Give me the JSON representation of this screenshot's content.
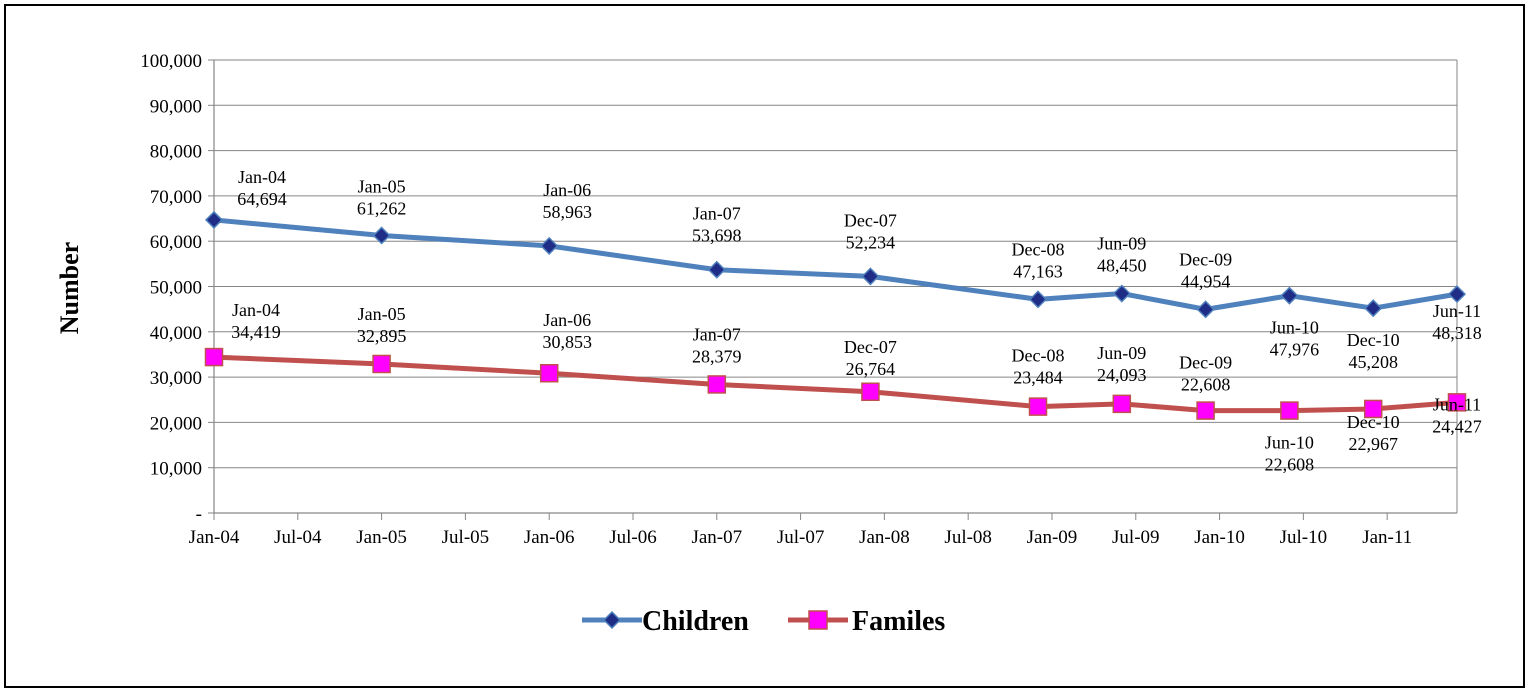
{
  "chart_data": {
    "type": "line",
    "title": "",
    "xlabel": "",
    "ylabel": "Number",
    "ylim": [
      0,
      100000
    ],
    "y_ticks": [
      {
        "value": 0,
        "label": "-"
      },
      {
        "value": 10000,
        "label": "10,000"
      },
      {
        "value": 20000,
        "label": "20,000"
      },
      {
        "value": 30000,
        "label": "30,000"
      },
      {
        "value": 40000,
        "label": "40,000"
      },
      {
        "value": 50000,
        "label": "50,000"
      },
      {
        "value": 60000,
        "label": "60,000"
      },
      {
        "value": 70000,
        "label": "70,000"
      },
      {
        "value": 80000,
        "label": "80,000"
      },
      {
        "value": 90000,
        "label": "90,000"
      },
      {
        "value": 100000,
        "label": "100,000"
      }
    ],
    "xlim": [
      "2004-01",
      "2011-06"
    ],
    "x_ticks": [
      {
        "date": "2004-01",
        "label": "Jan-04"
      },
      {
        "date": "2004-07",
        "label": "Jul-04"
      },
      {
        "date": "2005-01",
        "label": "Jan-05"
      },
      {
        "date": "2005-07",
        "label": "Jul-05"
      },
      {
        "date": "2006-01",
        "label": "Jan-06"
      },
      {
        "date": "2006-07",
        "label": "Jul-06"
      },
      {
        "date": "2007-01",
        "label": "Jan-07"
      },
      {
        "date": "2007-07",
        "label": "Jul-07"
      },
      {
        "date": "2008-01",
        "label": "Jan-08"
      },
      {
        "date": "2008-07",
        "label": "Jul-08"
      },
      {
        "date": "2009-01",
        "label": "Jan-09"
      },
      {
        "date": "2009-07",
        "label": "Jul-09"
      },
      {
        "date": "2010-01",
        "label": "Jan-10"
      },
      {
        "date": "2010-07",
        "label": "Jul-10"
      },
      {
        "date": "2011-01",
        "label": "Jan-11"
      }
    ],
    "grid": true,
    "legend_position": "bottom",
    "series": [
      {
        "name": "Children",
        "color": "#4F81BD",
        "marker": "diamond",
        "marker_color": "#1F2D86",
        "points": [
          {
            "x": "2004-01",
            "label": "Jan-04",
            "value": 64694,
            "value_label": "64,694"
          },
          {
            "x": "2005-01",
            "label": "Jan-05",
            "value": 61262,
            "value_label": "61,262"
          },
          {
            "x": "2006-01",
            "label": "Jan-06",
            "value": 58963,
            "value_label": "58,963"
          },
          {
            "x": "2007-01",
            "label": "Jan-07",
            "value": 53698,
            "value_label": "53,698"
          },
          {
            "x": "2007-12",
            "label": "Dec-07",
            "value": 52234,
            "value_label": "52,234"
          },
          {
            "x": "2008-12",
            "label": "Dec-08",
            "value": 47163,
            "value_label": "47,163"
          },
          {
            "x": "2009-06",
            "label": "Jun-09",
            "value": 48450,
            "value_label": "48,450"
          },
          {
            "x": "2009-12",
            "label": "Dec-09",
            "value": 44954,
            "value_label": "44,954"
          },
          {
            "x": "2010-06",
            "label": "Jun-10",
            "value": 47976,
            "value_label": "47,976"
          },
          {
            "x": "2010-12",
            "label": "Dec-10",
            "value": 45208,
            "value_label": "45,208"
          },
          {
            "x": "2011-06",
            "label": "Jun-11",
            "value": 48318,
            "value_label": "48,318"
          }
        ]
      },
      {
        "name": "Familes",
        "color": "#C0504D",
        "marker": "square",
        "marker_color": "#FF00FF",
        "points": [
          {
            "x": "2004-01",
            "label": "Jan-04",
            "value": 34419,
            "value_label": "34,419"
          },
          {
            "x": "2005-01",
            "label": "Jan-05",
            "value": 32895,
            "value_label": "32,895"
          },
          {
            "x": "2006-01",
            "label": "Jan-06",
            "value": 30853,
            "value_label": "30,853"
          },
          {
            "x": "2007-01",
            "label": "Jan-07",
            "value": 28379,
            "value_label": "28,379"
          },
          {
            "x": "2007-12",
            "label": "Dec-07",
            "value": 26764,
            "value_label": "26,764"
          },
          {
            "x": "2008-12",
            "label": "Dec-08",
            "value": 23484,
            "value_label": "23,484"
          },
          {
            "x": "2009-06",
            "label": "Jun-09",
            "value": 24093,
            "value_label": "24,093"
          },
          {
            "x": "2009-12",
            "label": "Dec-09",
            "value": 22608,
            "value_label": "22,608"
          },
          {
            "x": "2010-06",
            "label": "Jun-10",
            "value": 22608,
            "value_label": "22,608"
          },
          {
            "x": "2010-12",
            "label": "Dec-10",
            "value": 22967,
            "value_label": "22,967"
          },
          {
            "x": "2011-06",
            "label": "Jun-11",
            "value": 24427,
            "value_label": "24,427"
          }
        ]
      }
    ]
  }
}
